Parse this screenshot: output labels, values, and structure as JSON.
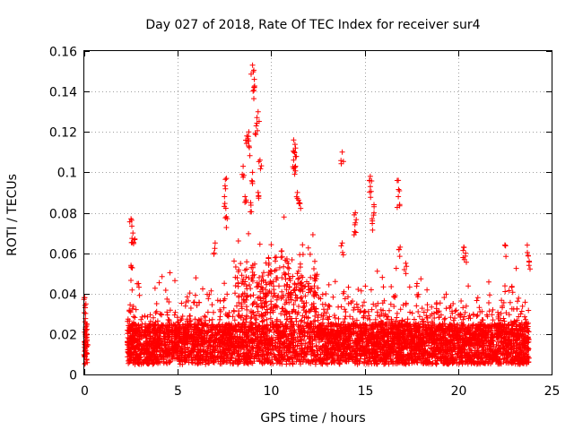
{
  "chart_data": {
    "type": "scatter",
    "title": "Day 027 of 2018, Rate Of TEC Index for receiver sur4",
    "xlabel": "GPS time / hours",
    "ylabel": "ROTI / TECUs",
    "xlim": [
      0,
      25
    ],
    "ylim": [
      0,
      0.16
    ],
    "xticks": [
      0,
      5,
      10,
      15,
      20,
      25
    ],
    "xtick_labels": [
      "0",
      "5",
      "10",
      "15",
      "20",
      "25"
    ],
    "yticks": [
      0,
      0.02,
      0.04,
      0.06,
      0.08,
      0.1,
      0.12,
      0.14,
      0.16
    ],
    "ytick_labels": [
      "0",
      "0.02",
      "0.04",
      "0.06",
      "0.08",
      "0.1",
      "0.12",
      "0.14",
      "0.16"
    ],
    "grid": true,
    "marker": "+",
    "color": "#ff0000",
    "series": [
      {
        "name": "ROTI",
        "description_points": [
          [
            0.0,
            0.038
          ],
          [
            0.05,
            0.033
          ],
          [
            0.1,
            0.025
          ],
          [
            0.02,
            0.015
          ],
          [
            0.08,
            0.01
          ],
          [
            0.12,
            0.02
          ],
          [
            2.5,
            0.077
          ],
          [
            2.6,
            0.07
          ],
          [
            2.7,
            0.067
          ],
          [
            2.5,
            0.054
          ],
          [
            2.9,
            0.045
          ],
          [
            7.0,
            0.065
          ],
          [
            7.6,
            0.097
          ],
          [
            7.5,
            0.088
          ],
          [
            7.6,
            0.078
          ],
          [
            8.5,
            0.103
          ],
          [
            8.7,
            0.118
          ],
          [
            8.8,
            0.12
          ],
          [
            8.8,
            0.113
          ],
          [
            9.0,
            0.153
          ],
          [
            9.1,
            0.146
          ],
          [
            9.1,
            0.142
          ],
          [
            9.3,
            0.13
          ],
          [
            9.2,
            0.123
          ],
          [
            9.4,
            0.106
          ],
          [
            9.0,
            0.1
          ],
          [
            8.6,
            0.088
          ],
          [
            9.3,
            0.09
          ],
          [
            8.9,
            0.085
          ],
          [
            11.2,
            0.116
          ],
          [
            11.3,
            0.112
          ],
          [
            11.2,
            0.106
          ],
          [
            11.3,
            0.103
          ],
          [
            11.4,
            0.09
          ],
          [
            11.5,
            0.085
          ],
          [
            13.8,
            0.11
          ],
          [
            13.8,
            0.065
          ],
          [
            14.5,
            0.08
          ],
          [
            14.5,
            0.075
          ],
          [
            15.3,
            0.098
          ],
          [
            15.3,
            0.093
          ],
          [
            15.5,
            0.084
          ],
          [
            15.4,
            0.077
          ],
          [
            16.8,
            0.096
          ],
          [
            16.8,
            0.088
          ],
          [
            16.9,
            0.063
          ],
          [
            17.2,
            0.055
          ],
          [
            20.3,
            0.063
          ],
          [
            20.4,
            0.06
          ],
          [
            22.5,
            0.064
          ],
          [
            23.7,
            0.064
          ],
          [
            23.8,
            0.056
          ]
        ],
        "baseline_range": [
          0.005,
          0.025
        ],
        "x_coverage": [
          [
            0,
            0.15
          ],
          [
            2.3,
            23.8
          ]
        ]
      }
    ]
  }
}
